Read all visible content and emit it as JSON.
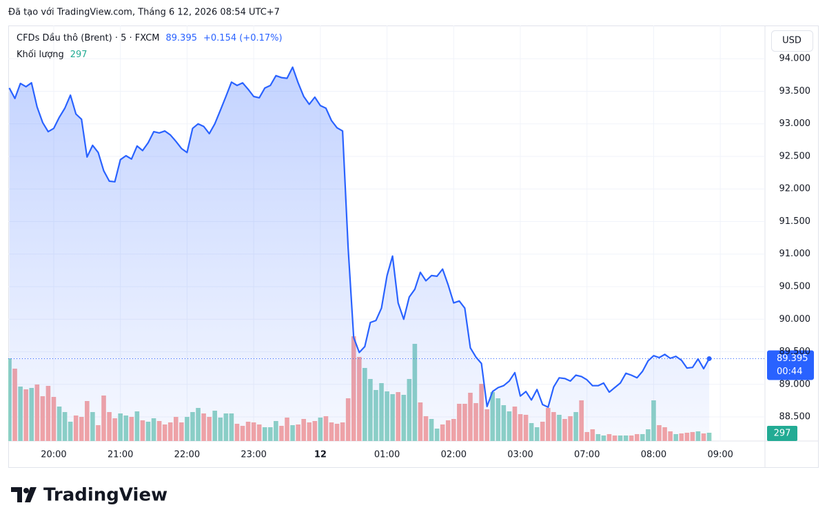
{
  "header": {
    "caption": "Đã tạo với TradingView.com, Tháng 6 12, 2026 08:54 UTC+7"
  },
  "footer": {
    "brand": "TradingView"
  },
  "chart_data": {
    "type": "line",
    "symbol": "CFDs Dầu thô (Brent) · 5 · FXCM",
    "last": "89.395",
    "change": "+0.154 (+0.17%)",
    "countdown": "00:44",
    "currency": "USD",
    "volume_title": "Khối lượng",
    "volume_last": "297",
    "color": "#2962ff",
    "grid": true,
    "ylim": [
      88.13,
      94.51
    ],
    "yticks": [
      {
        "value": 88.5,
        "label": "88.500"
      },
      {
        "value": 89,
        "label": "89.000"
      },
      {
        "value": 89.5,
        "label": "89.500"
      },
      {
        "value": 90,
        "label": "90.000"
      },
      {
        "value": 90.5,
        "label": "90.500"
      },
      {
        "value": 91,
        "label": "91.000"
      },
      {
        "value": 91.5,
        "label": "91.500"
      },
      {
        "value": 92,
        "label": "92.000"
      },
      {
        "value": 92.5,
        "label": "92.500"
      },
      {
        "value": 93,
        "label": "93.000"
      },
      {
        "value": 93.5,
        "label": "93.500"
      },
      {
        "value": 94,
        "label": "94.000"
      }
    ],
    "categories": [
      null,
      null,
      null,
      null,
      null,
      null,
      null,
      null,
      "20:00",
      null,
      null,
      null,
      null,
      null,
      null,
      null,
      null,
      null,
      null,
      null,
      "21:00",
      null,
      null,
      null,
      null,
      null,
      null,
      null,
      null,
      null,
      null,
      null,
      "22:00",
      null,
      null,
      null,
      null,
      null,
      null,
      null,
      null,
      null,
      null,
      null,
      "23:00",
      null,
      null,
      null,
      null,
      null,
      null,
      null,
      null,
      null,
      null,
      null,
      "12",
      null,
      null,
      null,
      null,
      null,
      null,
      null,
      null,
      null,
      null,
      null,
      "01:00",
      null,
      null,
      null,
      null,
      null,
      null,
      null,
      null,
      null,
      null,
      null,
      "02:00",
      null,
      null,
      null,
      null,
      null,
      null,
      null,
      null,
      null,
      null,
      null,
      "03:00",
      null,
      null,
      null,
      null,
      null,
      null,
      null,
      null,
      null,
      null,
      null,
      "07:00",
      null,
      null,
      null,
      null,
      null,
      null,
      null,
      null,
      null,
      null,
      null,
      "08:00",
      null,
      null,
      null,
      null,
      null,
      null,
      null,
      null,
      null,
      null,
      null,
      "09:00"
    ],
    "values": [
      93.55,
      93.39,
      93.62,
      93.57,
      93.63,
      93.26,
      93.02,
      92.88,
      92.93,
      93.1,
      93.24,
      93.44,
      93.15,
      93.07,
      92.49,
      92.67,
      92.56,
      92.28,
      92.12,
      92.11,
      92.45,
      92.51,
      92.46,
      92.66,
      92.59,
      92.71,
      92.88,
      92.86,
      92.89,
      92.83,
      92.73,
      92.62,
      92.56,
      92.93,
      93.0,
      92.96,
      92.85,
      93.0,
      93.21,
      93.42,
      93.64,
      93.59,
      93.63,
      93.53,
      93.42,
      93.4,
      93.55,
      93.59,
      93.74,
      93.71,
      93.7,
      93.87,
      93.63,
      93.42,
      93.3,
      93.41,
      93.28,
      93.24,
      93.05,
      92.94,
      92.89,
      91.09,
      89.72,
      89.49,
      89.58,
      89.95,
      89.98,
      90.17,
      90.67,
      90.97,
      90.25,
      90.0,
      90.34,
      90.46,
      90.72,
      90.59,
      90.67,
      90.66,
      90.77,
      90.53,
      90.25,
      90.28,
      90.17,
      89.56,
      89.42,
      89.32,
      88.66,
      88.89,
      88.95,
      88.98,
      89.05,
      89.18,
      88.82,
      88.89,
      88.76,
      88.92,
      88.69,
      88.65,
      88.96,
      89.1,
      89.09,
      89.05,
      89.14,
      89.12,
      89.07,
      88.98,
      88.98,
      89.02,
      88.88,
      88.95,
      89.02,
      89.17,
      89.14,
      89.1,
      89.2,
      89.36,
      89.44,
      89.41,
      89.46,
      89.4,
      89.43,
      89.37,
      89.25,
      89.26,
      89.39,
      89.24,
      89.395,
      null,
      null
    ],
    "volume": {
      "values": [
        2970,
        2599,
        1955,
        1856,
        1906,
        2030,
        1609,
        1980,
        1584,
        1238,
        1040,
        693,
        916,
        866,
        1436,
        1040,
        569,
        1634,
        1040,
        817,
        990,
        916,
        866,
        1064,
        743,
        693,
        817,
        718,
        594,
        668,
        866,
        668,
        866,
        1040,
        1188,
        990,
        866,
        1089,
        842,
        990,
        990,
        619,
        545,
        693,
        668,
        594,
        495,
        495,
        718,
        545,
        842,
        569,
        594,
        792,
        668,
        718,
        842,
        891,
        668,
        619,
        668,
        1535,
        3762,
        3020,
        2624,
        2228,
        1832,
        2079,
        1782,
        1683,
        1757,
        1658,
        2228,
        3490,
        1386,
        891,
        792,
        446,
        594,
        743,
        792,
        1337,
        1337,
        1733,
        1361,
        2054,
        1139,
        1757,
        1535,
        1287,
        1064,
        1238,
        965,
        941,
        644,
        495,
        693,
        1188,
        1040,
        941,
        792,
        891,
        1040,
        1460,
        322,
        421,
        248,
        198,
        248,
        198,
        198,
        198,
        198,
        248,
        248,
        421,
        1460,
        569,
        495,
        347,
        248,
        272,
        297,
        322,
        347,
        272,
        297,
        null,
        null
      ],
      "colors": [
        "#8fd3c4",
        "#f7a5a3",
        "#8fd3c4",
        "#f7a5a3",
        "#8fd3c4",
        "#f7a5a3",
        "#f7a5a3",
        "#f7a5a3",
        "#f7a5a3",
        "#8fd3c4",
        "#8fd3c4",
        "#8fd3c4",
        "#f7a5a3",
        "#f7a5a3",
        "#f7a5a3",
        "#8fd3c4",
        "#f7a5a3",
        "#f7a5a3",
        "#f7a5a3",
        "#f7a5a3",
        "#8fd3c4",
        "#8fd3c4",
        "#f7a5a3",
        "#8fd3c4",
        "#f7a5a3",
        "#8fd3c4",
        "#8fd3c4",
        "#f7a5a3",
        "#f7a5a3",
        "#f7a5a3",
        "#f7a5a3",
        "#f7a5a3",
        "#8fd3c4",
        "#8fd3c4",
        "#8fd3c4",
        "#f7a5a3",
        "#f7a5a3",
        "#8fd3c4",
        "#8fd3c4",
        "#8fd3c4",
        "#8fd3c4",
        "#f7a5a3",
        "#f7a5a3",
        "#f7a5a3",
        "#f7a5a3",
        "#f7a5a3",
        "#8fd3c4",
        "#8fd3c4",
        "#8fd3c4",
        "#f7a5a3",
        "#f7a5a3",
        "#8fd3c4",
        "#f7a5a3",
        "#f7a5a3",
        "#f7a5a3",
        "#f7a5a3",
        "#8fd3c4",
        "#f7a5a3",
        "#f7a5a3",
        "#f7a5a3",
        "#f7a5a3",
        "#f7a5a3",
        "#f7a5a3",
        "#f7a5a3",
        "#8fd3c4",
        "#8fd3c4",
        "#8fd3c4",
        "#8fd3c4",
        "#8fd3c4",
        "#8fd3c4",
        "#f7a5a3",
        "#8fd3c4",
        "#8fd3c4",
        "#8fd3c4",
        "#f7a5a3",
        "#f7a5a3",
        "#8fd3c4",
        "#8fd3c4",
        "#f7a5a3",
        "#f7a5a3",
        "#f7a5a3",
        "#f7a5a3",
        "#f7a5a3",
        "#f7a5a3",
        "#f7a5a3",
        "#f7a5a3",
        "#f7a5a3",
        "#8fd3c4",
        "#8fd3c4",
        "#8fd3c4",
        "#8fd3c4",
        "#f7a5a3",
        "#f7a5a3",
        "#f7a5a3",
        "#8fd3c4",
        "#8fd3c4",
        "#f7a5a3",
        "#f7a5a3",
        "#f7a5a3",
        "#8fd3c4",
        "#f7a5a3",
        "#f7a5a3",
        "#8fd3c4",
        "#f7a5a3",
        "#f7a5a3",
        "#f7a5a3",
        "#8fd3c4",
        "#8fd3c4",
        "#f7a5a3",
        "#f7a5a3",
        "#8fd3c4",
        "#8fd3c4",
        "#f7a5a3",
        "#f7a5a3",
        "#8fd3c4",
        "#8fd3c4",
        "#8fd3c4",
        "#f7a5a3",
        "#f7a5a3",
        "#f7a5a3",
        "#8fd3c4",
        "#f7a5a3",
        "#f7a5a3",
        "#f7a5a3",
        "#8fd3c4",
        "#f7a5a3",
        "#8fd3c4",
        null,
        null
      ]
    }
  }
}
